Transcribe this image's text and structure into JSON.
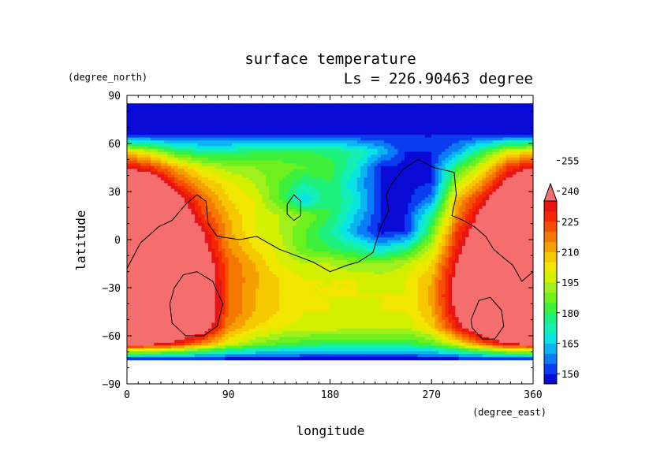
{
  "chart_data": {
    "type": "heatmap",
    "title": "surface temperature",
    "subtitle": "Ls = 226.90463 degree",
    "xlabel": "longitude",
    "ylabel": "latitude",
    "xunit": "(degree_east)",
    "yunit": "(degree_north)",
    "xlim": [
      0,
      360
    ],
    "ylim": [
      -90,
      90
    ],
    "x_ticks": [
      "0",
      "90",
      "180",
      "270",
      "360"
    ],
    "y_ticks": [
      "90",
      "60",
      "30",
      "0",
      "−30",
      "−60",
      "−90"
    ],
    "colorbar_labels": [
      "255",
      "240",
      "225",
      "210",
      "195",
      "180",
      "165",
      "150"
    ],
    "colorbar_extend": "max",
    "levels": [
      145,
      150,
      155,
      160,
      165,
      170,
      175,
      180,
      185,
      190,
      195,
      200,
      205,
      210,
      215,
      220,
      225,
      230,
      235,
      240,
      245,
      250,
      255,
      260
    ],
    "colors": [
      "#0a0ad6",
      "#0a3cf0",
      "#0a7cf5",
      "#0ab4f0",
      "#0ae4e4",
      "#14f0b4",
      "#1ef07c",
      "#3cf03c",
      "#6ef01e",
      "#a0f01e",
      "#d2f000",
      "#f0e600",
      "#f5c800",
      "#f5a000",
      "#f57800",
      "#f55000",
      "#f52800",
      "#e61414",
      "#f56e6e"
    ],
    "lon": [
      0,
      22.5,
      45,
      67.5,
      90,
      112.5,
      135,
      157.5,
      180,
      202.5,
      225,
      247.5,
      270,
      292.5,
      315,
      337.5,
      360
    ],
    "lat": [
      85,
      75,
      65,
      55,
      45,
      35,
      25,
      15,
      5,
      -5,
      -15,
      -25,
      -35,
      -45,
      -55,
      -65,
      -75
    ],
    "values": [
      [
        145,
        145,
        145,
        145,
        145,
        145,
        145,
        145,
        145,
        145,
        145,
        145,
        145,
        145,
        145,
        145,
        145
      ],
      [
        145,
        145,
        145,
        145,
        145,
        145,
        145,
        145,
        145,
        145,
        145,
        145,
        145,
        145,
        145,
        145,
        145
      ],
      [
        148,
        150,
        150,
        150,
        150,
        150,
        150,
        150,
        150,
        150,
        150,
        150,
        150,
        150,
        150,
        150,
        148
      ],
      [
        205,
        195,
        180,
        175,
        175,
        180,
        180,
        180,
        178,
        175,
        165,
        150,
        150,
        160,
        180,
        200,
        205
      ],
      [
        235,
        225,
        210,
        198,
        192,
        190,
        188,
        185,
        183,
        170,
        150,
        148,
        150,
        180,
        200,
        225,
        235
      ],
      [
        258,
        250,
        225,
        210,
        202,
        195,
        185,
        175,
        180,
        165,
        150,
        148,
        150,
        195,
        215,
        240,
        258
      ],
      [
        261,
        258,
        240,
        220,
        205,
        200,
        185,
        165,
        180,
        170,
        150,
        148,
        158,
        210,
        230,
        255,
        261
      ],
      [
        261,
        260,
        250,
        225,
        210,
        200,
        195,
        190,
        180,
        165,
        150,
        150,
        175,
        215,
        240,
        260,
        261
      ],
      [
        261,
        261,
        255,
        235,
        212,
        200,
        195,
        185,
        175,
        160,
        148,
        150,
        185,
        225,
        245,
        261,
        261
      ],
      [
        261,
        261,
        258,
        240,
        215,
        205,
        198,
        185,
        180,
        175,
        165,
        175,
        195,
        230,
        250,
        261,
        261
      ],
      [
        261,
        261,
        260,
        245,
        220,
        210,
        200,
        195,
        195,
        190,
        190,
        195,
        205,
        235,
        255,
        261,
        261
      ],
      [
        261,
        261,
        261,
        250,
        220,
        212,
        205,
        200,
        200,
        200,
        198,
        200,
        210,
        240,
        258,
        261,
        261
      ],
      [
        261,
        261,
        261,
        250,
        220,
        210,
        205,
        200,
        200,
        200,
        200,
        200,
        212,
        240,
        258,
        261,
        261
      ],
      [
        261,
        261,
        261,
        250,
        220,
        210,
        205,
        200,
        200,
        198,
        200,
        200,
        210,
        238,
        255,
        261,
        261
      ],
      [
        261,
        261,
        258,
        245,
        215,
        205,
        200,
        198,
        198,
        195,
        195,
        195,
        205,
        230,
        252,
        261,
        261
      ],
      [
        240,
        238,
        230,
        215,
        200,
        190,
        185,
        182,
        180,
        180,
        180,
        180,
        185,
        200,
        220,
        235,
        240
      ],
      [
        145,
        145,
        145,
        145,
        145,
        145,
        145,
        145,
        145,
        145,
        145,
        145,
        145,
        145,
        145,
        145,
        145
      ]
    ],
    "contour_lines": [
      [
        [
          0,
          -18
        ],
        [
          12,
          -2
        ],
        [
          28,
          8
        ],
        [
          40,
          12
        ],
        [
          52,
          22
        ],
        [
          62,
          28
        ],
        [
          70,
          24
        ],
        [
          72,
          10
        ],
        [
          80,
          2
        ],
        [
          100,
          0
        ],
        [
          115,
          2
        ],
        [
          125,
          -2
        ],
        [
          135,
          -6
        ],
        [
          150,
          -10
        ],
        [
          165,
          -14
        ],
        [
          180,
          -20
        ],
        [
          195,
          -16
        ],
        [
          205,
          -14
        ],
        [
          218,
          -8
        ],
        [
          225,
          8
        ],
        [
          232,
          18
        ],
        [
          230,
          28
        ],
        [
          235,
          35
        ],
        [
          245,
          44
        ],
        [
          258,
          50
        ],
        [
          272,
          45
        ],
        [
          290,
          42
        ],
        [
          292,
          28
        ],
        [
          288,
          15
        ],
        [
          298,
          12
        ],
        [
          308,
          8
        ],
        [
          318,
          2
        ],
        [
          325,
          -6
        ],
        [
          335,
          -12
        ],
        [
          342,
          -16
        ],
        [
          350,
          -26
        ],
        [
          360,
          -20
        ]
      ],
      [
        [
          42,
          -30
        ],
        [
          50,
          -22
        ],
        [
          62,
          -20
        ],
        [
          76,
          -26
        ],
        [
          85,
          -40
        ],
        [
          80,
          -54
        ],
        [
          68,
          -60
        ],
        [
          52,
          -60
        ],
        [
          40,
          -52
        ],
        [
          38,
          -40
        ],
        [
          42,
          -30
        ]
      ],
      [
        [
          305,
          -50
        ],
        [
          312,
          -38
        ],
        [
          322,
          -36
        ],
        [
          332,
          -44
        ],
        [
          334,
          -54
        ],
        [
          326,
          -62
        ],
        [
          315,
          -62
        ],
        [
          306,
          -55
        ],
        [
          305,
          -50
        ]
      ],
      [
        [
          142,
          22
        ],
        [
          148,
          28
        ],
        [
          154,
          24
        ],
        [
          154,
          15
        ],
        [
          148,
          12
        ],
        [
          142,
          16
        ],
        [
          142,
          22
        ]
      ]
    ]
  }
}
